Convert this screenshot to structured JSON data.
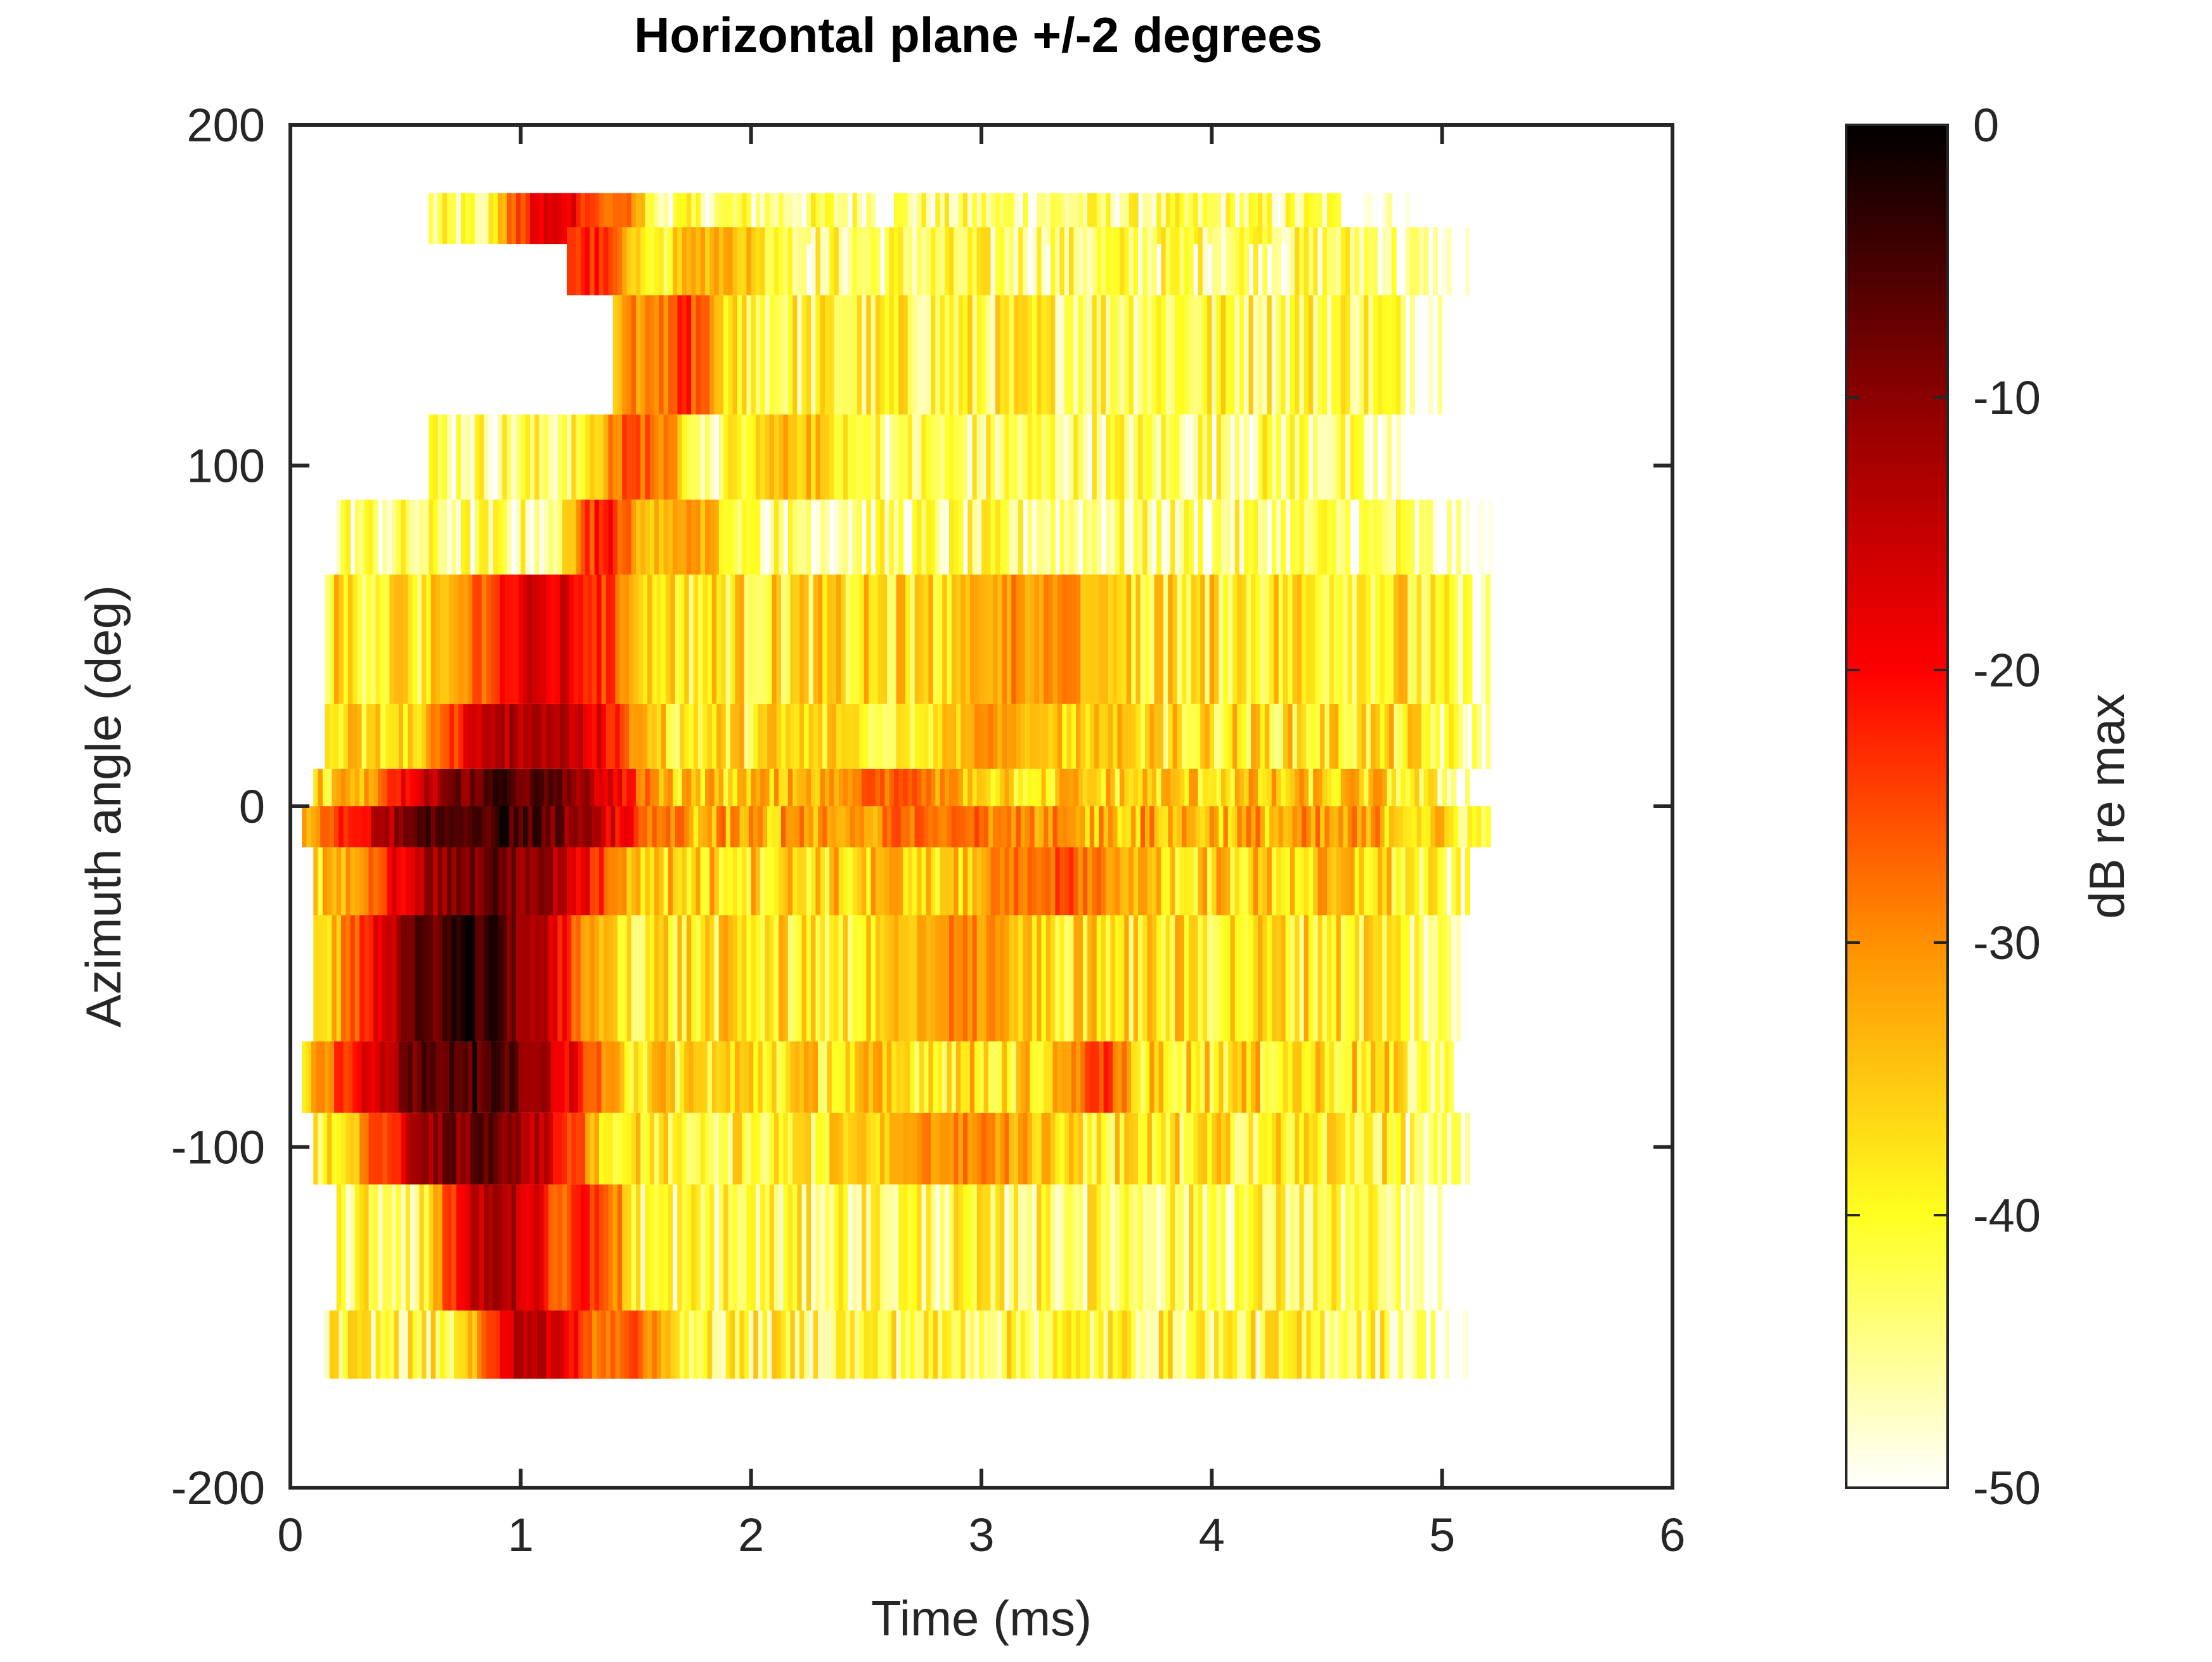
{
  "chart_data": {
    "type": "heatmap",
    "title": "Horizontal plane +/-2 degrees",
    "xlabel": "Time (ms)",
    "ylabel": "Azimuth angle (deg)",
    "xlim": [
      0,
      6
    ],
    "ylim": [
      -200,
      200
    ],
    "x_ticks": [
      "0",
      "1",
      "2",
      "3",
      "4",
      "5",
      "6"
    ],
    "y_ticks": [
      "-200",
      "-100",
      "0",
      "100",
      "200"
    ],
    "colorbar": {
      "label": "dB re max",
      "range": [
        -50,
        0
      ],
      "ticks": [
        "-50",
        "-40",
        "-30",
        "-20",
        "-10",
        "0"
      ],
      "colormap": "hot",
      "stops": [
        "#ffffff",
        "#ffff20",
        "#ff9000",
        "#ff0000",
        "#8b0000",
        "#000000"
      ]
    },
    "time_resolution_ms": 0.02,
    "rows": [
      {
        "azimuth": 175,
        "band": [
          165,
          180
        ],
        "x_start": 0.6,
        "x_end": 4.9,
        "peaks": [
          {
            "t": 1.15,
            "level": -18,
            "w": 0.15
          },
          {
            "t": 1.4,
            "level": -28,
            "w": 0.1
          }
        ],
        "floor": -44
      },
      {
        "azimuth": 160,
        "band": [
          150,
          170
        ],
        "x_start": 1.2,
        "x_end": 5.1,
        "peaks": [
          {
            "t": 1.3,
            "level": -22,
            "w": 0.12
          },
          {
            "t": 1.85,
            "level": -32,
            "w": 0.2
          }
        ],
        "floor": -43
      },
      {
        "azimuth": 135,
        "band": [
          115,
          150
        ],
        "x_start": 1.4,
        "x_end": 5.1,
        "peaks": [
          {
            "t": 1.55,
            "level": -30,
            "w": 0.2
          },
          {
            "t": 1.7,
            "level": -24,
            "w": 0.1
          }
        ],
        "floor": -41
      },
      {
        "azimuth": 100,
        "band": [
          90,
          115
        ],
        "x_start": 0.6,
        "x_end": 4.9,
        "peaks": [
          {
            "t": 1.5,
            "level": -26,
            "w": 0.15
          },
          {
            "t": 2.2,
            "level": -34,
            "w": 0.2
          }
        ],
        "floor": -43
      },
      {
        "azimuth": 80,
        "band": [
          68,
          90
        ],
        "x_start": 0.2,
        "x_end": 5.2,
        "peaks": [
          {
            "t": 1.35,
            "level": -22,
            "w": 0.1
          },
          {
            "t": 1.7,
            "level": -32,
            "w": 0.2
          }
        ],
        "floor": -44
      },
      {
        "azimuth": 50,
        "band": [
          30,
          68
        ],
        "x_start": 0.15,
        "x_end": 5.2,
        "peaks": [
          {
            "t": 1.1,
            "level": -18,
            "w": 0.25
          },
          {
            "t": 3.2,
            "level": -30,
            "w": 0.3
          }
        ],
        "floor": -38
      },
      {
        "azimuth": 20,
        "band": [
          11,
          30
        ],
        "x_start": 0.15,
        "x_end": 5.2,
        "peaks": [
          {
            "t": 1.05,
            "level": -12,
            "w": 0.25
          },
          {
            "t": 3.1,
            "level": -32,
            "w": 0.3
          }
        ],
        "floor": -38
      },
      {
        "azimuth": 5,
        "band": [
          0,
          11
        ],
        "x_start": 0.1,
        "x_end": 5.1,
        "peaks": [
          {
            "t": 0.95,
            "level": -6,
            "w": 0.3
          },
          {
            "t": 2.6,
            "level": -28,
            "w": 0.3
          }
        ],
        "floor": -36
      },
      {
        "azimuth": -5,
        "band": [
          -12,
          0
        ],
        "x_start": 0.05,
        "x_end": 5.2,
        "peaks": [
          {
            "t": 0.85,
            "level": -4,
            "w": 0.35
          },
          {
            "t": 2.8,
            "level": -26,
            "w": 0.3
          }
        ],
        "floor": -33
      },
      {
        "azimuth": -20,
        "band": [
          -32,
          -12
        ],
        "x_start": 0.1,
        "x_end": 5.1,
        "peaks": [
          {
            "t": 0.85,
            "level": -8,
            "w": 0.3
          },
          {
            "t": 3.3,
            "level": -26,
            "w": 0.3
          }
        ],
        "floor": -36
      },
      {
        "azimuth": -50,
        "band": [
          -69,
          -32
        ],
        "x_start": 0.1,
        "x_end": 5.1,
        "peaks": [
          {
            "t": 0.75,
            "level": -4,
            "w": 0.25
          },
          {
            "t": 2.9,
            "level": -30,
            "w": 0.3
          }
        ],
        "floor": -38
      },
      {
        "azimuth": -80,
        "band": [
          -90,
          -69
        ],
        "x_start": 0.05,
        "x_end": 5.1,
        "peaks": [
          {
            "t": 0.75,
            "level": -5,
            "w": 0.3
          },
          {
            "t": 3.5,
            "level": -24,
            "w": 0.1
          }
        ],
        "floor": -37
      },
      {
        "azimuth": -100,
        "band": [
          -111,
          -90
        ],
        "x_start": 0.1,
        "x_end": 5.1,
        "peaks": [
          {
            "t": 0.8,
            "level": -8,
            "w": 0.25
          },
          {
            "t": 2.9,
            "level": -30,
            "w": 0.4
          }
        ],
        "floor": -39
      },
      {
        "azimuth": -130,
        "band": [
          -148,
          -111
        ],
        "x_start": 0.2,
        "x_end": 5.0,
        "peaks": [
          {
            "t": 0.9,
            "level": -12,
            "w": 0.15
          },
          {
            "t": 1.3,
            "level": -22,
            "w": 0.1
          }
        ],
        "floor": -42
      },
      {
        "azimuth": -160,
        "band": [
          -168,
          -148
        ],
        "x_start": 0.15,
        "x_end": 5.1,
        "peaks": [
          {
            "t": 1.05,
            "level": -14,
            "w": 0.15
          },
          {
            "t": 1.45,
            "level": -26,
            "w": 0.15
          }
        ],
        "floor": -41
      }
    ]
  }
}
